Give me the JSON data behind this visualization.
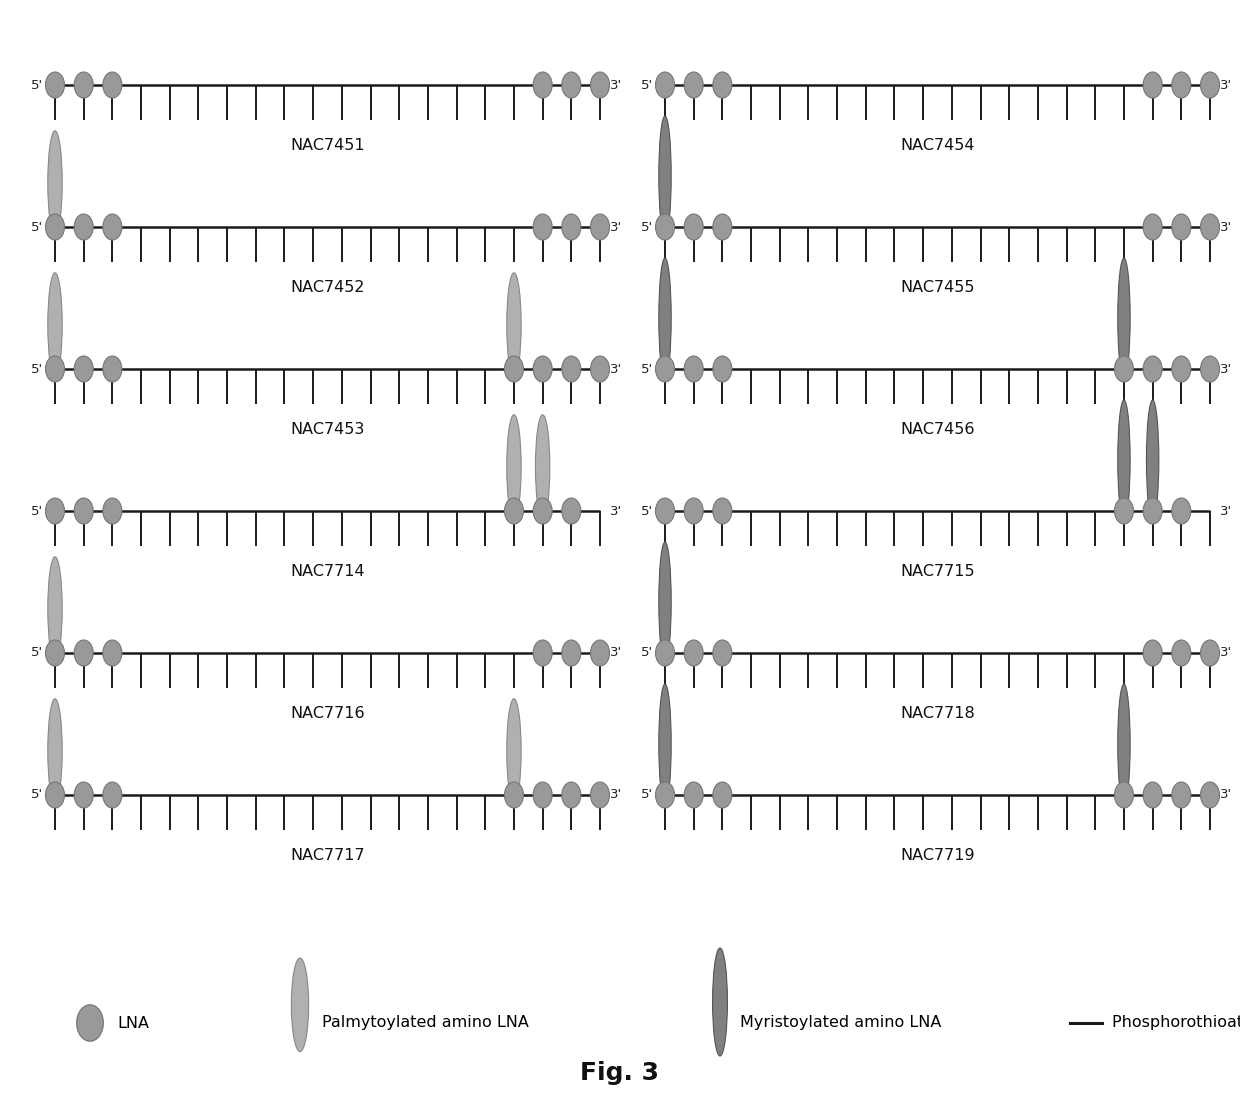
{
  "fig_width": 12.4,
  "fig_height": 11.11,
  "background_color": "#ffffff",
  "title": "Fig. 3",
  "title_fontsize": 18,
  "n_nucleotides": 20,
  "lna_color": "#999999",
  "lna_edge_color": "#777777",
  "ellipse_palm_color": "#b0b0b0",
  "ellipse_palm_edge": "#888888",
  "ellipse_myri_color": "#808080",
  "ellipse_myri_edge": "#555555",
  "line_color": "#1a1a1a",
  "diagrams": [
    {
      "name": "NAC7451",
      "col": 0,
      "row": 0,
      "lna_positions": [
        0,
        1,
        2,
        17,
        18,
        19
      ],
      "palm_ellipses": [],
      "myri_ellipses": []
    },
    {
      "name": "NAC7454",
      "col": 1,
      "row": 0,
      "lna_positions": [
        0,
        1,
        2,
        17,
        18,
        19
      ],
      "palm_ellipses": [],
      "myri_ellipses": []
    },
    {
      "name": "NAC7452",
      "col": 0,
      "row": 1,
      "lna_positions": [
        0,
        1,
        2,
        17,
        18,
        19
      ],
      "palm_ellipses": [
        0
      ],
      "myri_ellipses": []
    },
    {
      "name": "NAC7455",
      "col": 1,
      "row": 1,
      "lna_positions": [
        0,
        1,
        2,
        17,
        18,
        19
      ],
      "palm_ellipses": [],
      "myri_ellipses": [
        0
      ]
    },
    {
      "name": "NAC7453",
      "col": 0,
      "row": 2,
      "lna_positions": [
        0,
        1,
        2,
        16,
        17,
        18,
        19
      ],
      "palm_ellipses": [
        0,
        16
      ],
      "myri_ellipses": []
    },
    {
      "name": "NAC7456",
      "col": 1,
      "row": 2,
      "lna_positions": [
        0,
        1,
        2,
        16,
        17,
        18,
        19
      ],
      "palm_ellipses": [],
      "myri_ellipses": [
        0,
        16
      ]
    },
    {
      "name": "NAC7714",
      "col": 0,
      "row": 3,
      "lna_positions": [
        0,
        1,
        2,
        16,
        17,
        18
      ],
      "palm_ellipses": [
        16,
        17
      ],
      "myri_ellipses": []
    },
    {
      "name": "NAC7715",
      "col": 1,
      "row": 3,
      "lna_positions": [
        0,
        1,
        2,
        16,
        17,
        18
      ],
      "palm_ellipses": [],
      "myri_ellipses": [
        16,
        17
      ]
    },
    {
      "name": "NAC7716",
      "col": 0,
      "row": 4,
      "lna_positions": [
        0,
        1,
        2,
        17,
        18,
        19
      ],
      "palm_ellipses": [
        0
      ],
      "myri_ellipses": []
    },
    {
      "name": "NAC7718",
      "col": 1,
      "row": 4,
      "lna_positions": [
        0,
        1,
        2,
        17,
        18,
        19
      ],
      "palm_ellipses": [],
      "myri_ellipses": [
        0
      ]
    },
    {
      "name": "NAC7717",
      "col": 0,
      "row": 5,
      "lna_positions": [
        0,
        1,
        2,
        16,
        17,
        18,
        19
      ],
      "palm_ellipses": [
        0,
        16
      ],
      "myri_ellipses": []
    },
    {
      "name": "NAC7719",
      "col": 1,
      "row": 5,
      "lna_positions": [
        0,
        1,
        2,
        16,
        17,
        18,
        19
      ],
      "palm_ellipses": [],
      "myri_ellipses": [
        0,
        16
      ]
    }
  ],
  "legend": {
    "lna_label": "LNA",
    "palm_label": "Palmytoylated amino LNA",
    "myri_label": "Myristoylated amino LNA",
    "ps_label": "Phosphorothioate linkages"
  }
}
